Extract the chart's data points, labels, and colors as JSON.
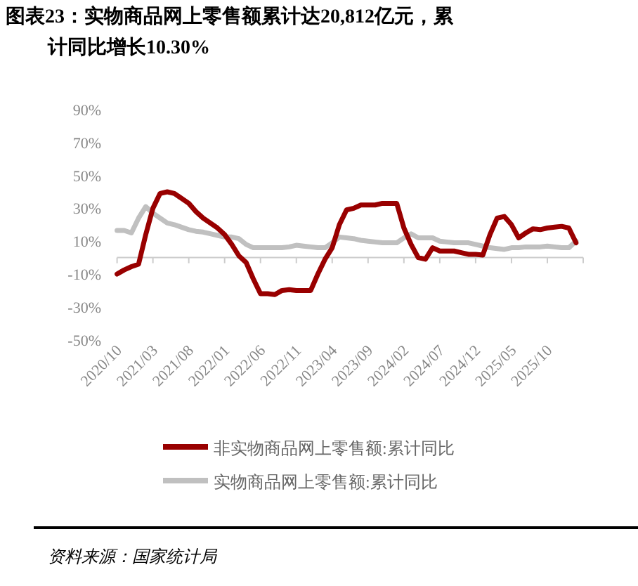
{
  "chart_data": {
    "type": "line",
    "title": "图表23：实物商品网上零售额累计达20,812亿元，累计同比增长10.30%",
    "categories": [
      "2020/10",
      null,
      null,
      null,
      null,
      "2021/03",
      null,
      null,
      null,
      null,
      "2021/08",
      null,
      null,
      null,
      null,
      "2022/01",
      null,
      null,
      null,
      null,
      "2022/06",
      null,
      null,
      null,
      null,
      "2022/11",
      null,
      null,
      null,
      null,
      "2023/04",
      null,
      null,
      null,
      null,
      "2023/09",
      null,
      null,
      null,
      null,
      "2024/02",
      null,
      null,
      null,
      null,
      "2024/07",
      null,
      null,
      null,
      null,
      "2024/12",
      null,
      null,
      null,
      null,
      "2025/05",
      null,
      null,
      null,
      null,
      "2025/10",
      null,
      null,
      null,
      null
    ],
    "series": [
      {
        "name": "非实物商品网上零售额:累计同比",
        "color": "#990000",
        "values": [
          -10,
          -7.5,
          -5.5,
          -4,
          14,
          30,
          39,
          40,
          39,
          36,
          33,
          28,
          24,
          21,
          18,
          14,
          8,
          1,
          -3,
          -13,
          -22,
          -22,
          -22.5,
          -20,
          -19.5,
          -20,
          -20,
          -20,
          -10,
          -1,
          6,
          20,
          29,
          30,
          32,
          32,
          32,
          33,
          33,
          33,
          18,
          8,
          0,
          -1,
          6,
          4,
          4,
          4,
          3,
          2,
          2,
          1.5,
          14,
          24,
          25,
          20,
          12,
          15,
          17.5,
          17,
          18,
          18.5,
          19,
          18,
          9
        ]
      },
      {
        "name": "实物商品网上零售额:累计同比",
        "color": "#c0c0c0",
        "values": [
          16.5,
          16.5,
          15,
          24,
          31,
          27,
          24,
          21,
          20,
          18.5,
          17,
          16,
          15.5,
          14.5,
          13.5,
          12.5,
          12.5,
          11.5,
          8,
          6,
          6,
          6,
          6,
          6,
          6.5,
          7.5,
          7,
          6.5,
          6,
          6,
          9,
          12.5,
          12,
          11.5,
          10.5,
          10,
          9.5,
          9,
          9,
          9,
          12,
          14.5,
          12,
          12,
          12,
          10,
          9.5,
          9,
          9,
          9,
          8,
          7,
          6,
          5.5,
          5,
          6,
          6,
          6.5,
          6.5,
          6.5,
          7,
          6.5,
          6,
          6,
          10
        ]
      }
    ],
    "ylim": [
      -50,
      90
    ],
    "yticks": [
      {
        "value": -50,
        "label": "-50%"
      },
      {
        "value": -30,
        "label": "-30%"
      },
      {
        "value": -10,
        "label": "-10%"
      },
      {
        "value": 10,
        "label": "10%"
      },
      {
        "value": 30,
        "label": "30%"
      },
      {
        "value": 50,
        "label": "50%"
      },
      {
        "value": 70,
        "label": "70%"
      },
      {
        "value": 90,
        "label": "90%"
      }
    ],
    "legend": "bottom",
    "grid": false,
    "marker": "none",
    "line_style": "solid",
    "annotations": [
      "资料来源：国家统计局"
    ]
  }
}
